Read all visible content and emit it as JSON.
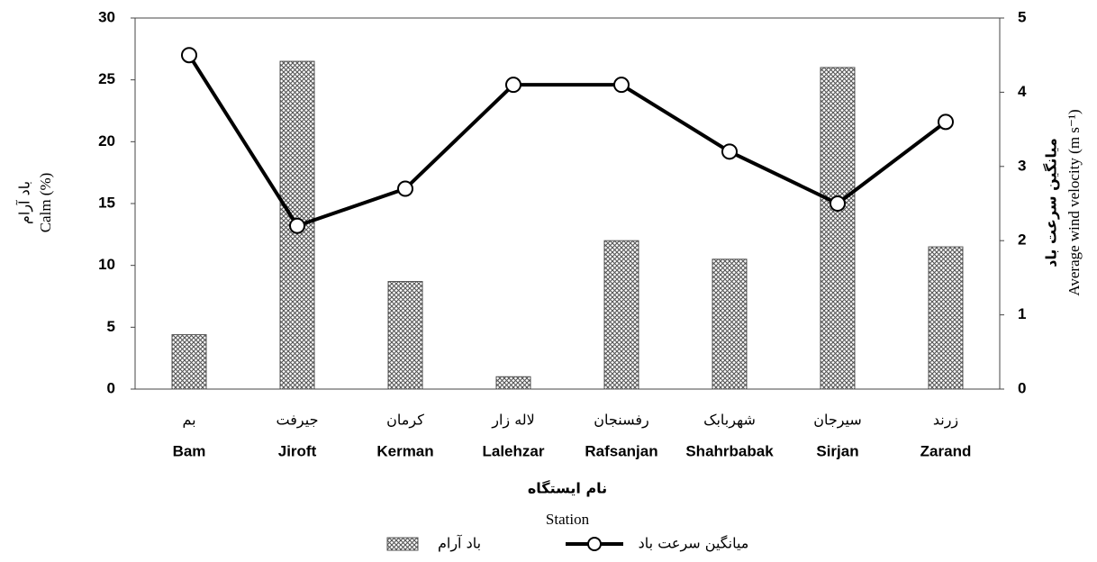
{
  "chart_data": {
    "type": "bar_line",
    "categories": [
      "Bam",
      "Jiroft",
      "Kerman",
      "Lalehzar",
      "Rafsanjan",
      "Shahrbabak",
      "Sirjan",
      "Zarand"
    ],
    "categories_fa": [
      "بم",
      "جیرفت",
      "کرمان",
      "لاله زار",
      "رفسنجان",
      "شهربابک",
      "سیرجان",
      "زرند"
    ],
    "x_label_fa": "نام ایستگاه",
    "x_label": "Station",
    "y_label_fa": "باد آرام",
    "y_label": "Calm (%)",
    "y2_label_fa": "میانگین سرعت باد",
    "y2_label": "Average wind velocity (m s⁻¹)",
    "ylim": [
      0,
      30
    ],
    "yticks": [
      0,
      5,
      10,
      15,
      20,
      25,
      30
    ],
    "y2lim": [
      0,
      5
    ],
    "y2ticks": [
      0,
      1,
      2,
      3,
      4,
      5
    ],
    "series": [
      {
        "name": "باد آرام",
        "type": "bar",
        "color": "#555555",
        "values": [
          4.4,
          26.5,
          8.7,
          1.0,
          12.0,
          10.5,
          26.0,
          11.5
        ]
      },
      {
        "name": "میانگین سرعت باد",
        "type": "line",
        "axis": "y2",
        "color": "#000000",
        "values": [
          4.5,
          2.2,
          2.7,
          4.1,
          4.1,
          3.2,
          2.5,
          3.6
        ]
      }
    ]
  }
}
